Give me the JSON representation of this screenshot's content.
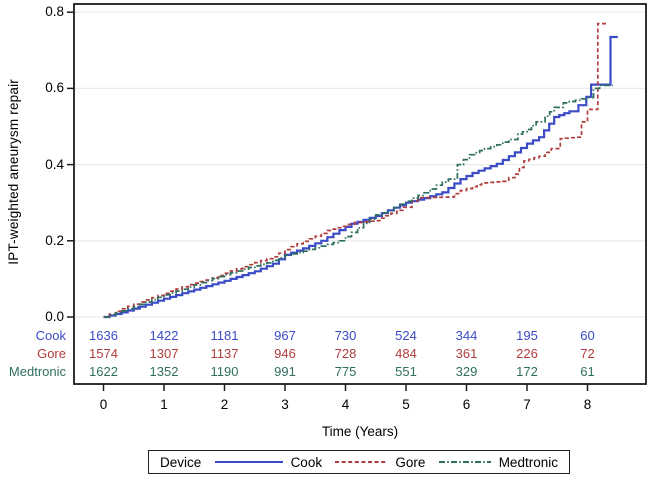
{
  "figure_title": "",
  "y_axis": {
    "label": "IPT-weighted aneurysm repair",
    "ticks": [
      {
        "label": "0.0",
        "value": 0.0
      },
      {
        "label": "0.2",
        "value": 0.2
      },
      {
        "label": "0.4",
        "value": 0.4
      },
      {
        "label": "0.6",
        "value": 0.6
      },
      {
        "label": "0.8",
        "value": 0.8
      }
    ]
  },
  "x_axis": {
    "label": "Time (Years)",
    "ticks": [
      {
        "label": "0",
        "value": 0
      },
      {
        "label": "1",
        "value": 1
      },
      {
        "label": "2",
        "value": 2
      },
      {
        "label": "3",
        "value": 3
      },
      {
        "label": "4",
        "value": 4
      },
      {
        "label": "5",
        "value": 5
      },
      {
        "label": "6",
        "value": 6
      },
      {
        "label": "7",
        "value": 7
      },
      {
        "label": "8",
        "value": 8
      }
    ]
  },
  "legend": {
    "title": "Device",
    "position": "bottom"
  },
  "colors": {
    "cook": "#3b4bc8",
    "gore": "#b03c3c",
    "medtronic": "#2f6f5f",
    "gridline": "#eaeaea",
    "axis": "#1c1c1c"
  },
  "chart_data": {
    "type": "line",
    "subtype": "step",
    "title": "",
    "xlabel": "Time (Years)",
    "ylabel": "IPT-weighted aneurysm repair",
    "xlim": [
      0,
      8.6
    ],
    "ylim": [
      0,
      0.8
    ],
    "grid": true,
    "legend_title": "Device",
    "legend_position": "bottom",
    "series": [
      {
        "name": "Cook",
        "color": "#3b4bc8",
        "style": "solid",
        "width": 2.2,
        "points": [
          [
            0,
            0
          ],
          [
            0.3,
            0.012
          ],
          [
            0.6,
            0.027
          ],
          [
            1,
            0.048
          ],
          [
            1.5,
            0.072
          ],
          [
            2,
            0.095
          ],
          [
            2.5,
            0.12
          ],
          [
            2.8,
            0.14
          ],
          [
            3,
            0.163
          ],
          [
            3.3,
            0.18
          ],
          [
            3.6,
            0.2
          ],
          [
            3.9,
            0.228
          ],
          [
            4.1,
            0.245
          ],
          [
            4.5,
            0.265
          ],
          [
            4.8,
            0.287
          ],
          [
            5,
            0.3
          ],
          [
            5.3,
            0.312
          ],
          [
            5.6,
            0.327
          ],
          [
            5.9,
            0.362
          ],
          [
            6.1,
            0.378
          ],
          [
            6.5,
            0.402
          ],
          [
            6.8,
            0.432
          ],
          [
            7,
            0.455
          ],
          [
            7.2,
            0.472
          ],
          [
            7.45,
            0.525
          ],
          [
            7.7,
            0.54
          ],
          [
            7.85,
            0.556
          ],
          [
            7.98,
            0.578
          ],
          [
            8.06,
            0.61
          ],
          [
            8.38,
            0.61
          ],
          [
            8.38,
            0.735
          ],
          [
            8.5,
            0.735
          ]
        ]
      },
      {
        "name": "Gore",
        "color": "#b03c3c",
        "style": "dashed",
        "width": 1.7,
        "points": [
          [
            0,
            0
          ],
          [
            0.2,
            0.015
          ],
          [
            0.4,
            0.028
          ],
          [
            0.7,
            0.045
          ],
          [
            1,
            0.062
          ],
          [
            1.4,
            0.085
          ],
          [
            1.7,
            0.097
          ],
          [
            2,
            0.115
          ],
          [
            2.3,
            0.132
          ],
          [
            2.6,
            0.148
          ],
          [
            2.8,
            0.158
          ],
          [
            3,
            0.177
          ],
          [
            3.2,
            0.192
          ],
          [
            3.5,
            0.212
          ],
          [
            3.7,
            0.227
          ],
          [
            3.95,
            0.238
          ],
          [
            4.15,
            0.248
          ],
          [
            4.5,
            0.253
          ],
          [
            4.75,
            0.272
          ],
          [
            4.95,
            0.288
          ],
          [
            5.1,
            0.305
          ],
          [
            5.2,
            0.313
          ],
          [
            5.7,
            0.315
          ],
          [
            5.9,
            0.332
          ],
          [
            6.1,
            0.342
          ],
          [
            6.25,
            0.352
          ],
          [
            6.6,
            0.356
          ],
          [
            6.8,
            0.375
          ],
          [
            6.95,
            0.41
          ],
          [
            7.2,
            0.422
          ],
          [
            7.4,
            0.442
          ],
          [
            7.55,
            0.468
          ],
          [
            7.8,
            0.472
          ],
          [
            7.9,
            0.512
          ],
          [
            8,
            0.545
          ],
          [
            8.17,
            0.545
          ],
          [
            8.17,
            0.77
          ],
          [
            8.33,
            0.77
          ]
        ]
      },
      {
        "name": "Medtronic",
        "color": "#2f6f5f",
        "style": "dashdot",
        "width": 1.7,
        "points": [
          [
            0,
            0
          ],
          [
            0.3,
            0.016
          ],
          [
            0.6,
            0.033
          ],
          [
            1,
            0.058
          ],
          [
            1.3,
            0.073
          ],
          [
            1.6,
            0.09
          ],
          [
            1.9,
            0.106
          ],
          [
            2.1,
            0.116
          ],
          [
            2.4,
            0.13
          ],
          [
            2.7,
            0.142
          ],
          [
            3,
            0.162
          ],
          [
            3.3,
            0.173
          ],
          [
            3.6,
            0.186
          ],
          [
            3.9,
            0.2
          ],
          [
            4.1,
            0.222
          ],
          [
            4.3,
            0.246
          ],
          [
            4.5,
            0.268
          ],
          [
            4.7,
            0.279
          ],
          [
            4.9,
            0.296
          ],
          [
            5.1,
            0.312
          ],
          [
            5.3,
            0.326
          ],
          [
            5.5,
            0.346
          ],
          [
            5.7,
            0.362
          ],
          [
            5.85,
            0.4
          ],
          [
            6.05,
            0.426
          ],
          [
            6.3,
            0.442
          ],
          [
            6.5,
            0.452
          ],
          [
            6.7,
            0.466
          ],
          [
            6.85,
            0.48
          ],
          [
            7,
            0.492
          ],
          [
            7.15,
            0.512
          ],
          [
            7.3,
            0.527
          ],
          [
            7.45,
            0.55
          ],
          [
            7.6,
            0.562
          ],
          [
            8,
            0.576
          ],
          [
            8.1,
            0.6
          ],
          [
            8.2,
            0.608
          ],
          [
            8.42,
            0.608
          ]
        ]
      }
    ],
    "risk_table": {
      "years": [
        0,
        1,
        2,
        3,
        4,
        5,
        6,
        7,
        8
      ],
      "rows": [
        {
          "label": "Cook",
          "color": "#3b4bc8",
          "counts": [
            1636,
            1422,
            1181,
            967,
            730,
            524,
            344,
            195,
            60
          ]
        },
        {
          "label": "Gore",
          "color": "#b03c3c",
          "counts": [
            1574,
            1307,
            1137,
            946,
            728,
            484,
            361,
            226,
            72
          ]
        },
        {
          "label": "Medtronic",
          "color": "#2f6f5f",
          "counts": [
            1622,
            1352,
            1190,
            991,
            775,
            551,
            329,
            172,
            61
          ]
        }
      ]
    }
  }
}
